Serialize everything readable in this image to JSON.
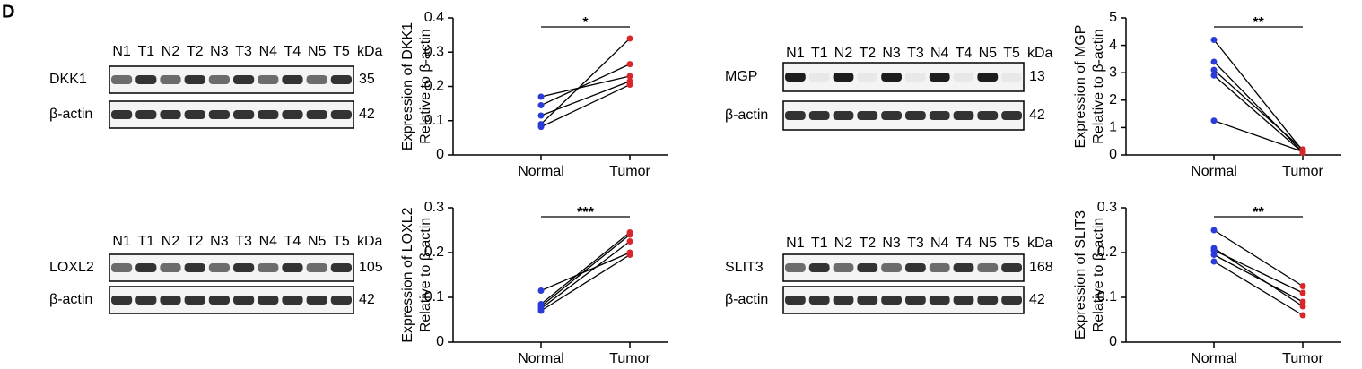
{
  "panel_label": "D",
  "blots": [
    {
      "lanes": [
        "N1",
        "T1",
        "N2",
        "T2",
        "N3",
        "T3",
        "N4",
        "T4",
        "N5",
        "T5"
      ],
      "unit": "kDa",
      "rows": [
        {
          "protein": "DKK1",
          "kda": 35
        },
        {
          "protein": "β-actin",
          "kda": 42
        }
      ]
    },
    {
      "lanes": [
        "N1",
        "T1",
        "N2",
        "T2",
        "N3",
        "T3",
        "N4",
        "T4",
        "N5",
        "T5"
      ],
      "unit": "kDa",
      "rows": [
        {
          "protein": "MGP",
          "kda": 13
        },
        {
          "protein": "β-actin",
          "kda": 42
        }
      ]
    },
    {
      "lanes": [
        "N1",
        "T1",
        "N2",
        "T2",
        "N3",
        "T3",
        "N4",
        "T4",
        "N5",
        "T5"
      ],
      "unit": "kDa",
      "rows": [
        {
          "protein": "LOXL2",
          "kda": 105
        },
        {
          "protein": "β-actin",
          "kda": 42
        }
      ]
    },
    {
      "lanes": [
        "N1",
        "T1",
        "N2",
        "T2",
        "N3",
        "T3",
        "N4",
        "T4",
        "N5",
        "T5"
      ],
      "unit": "kDa",
      "rows": [
        {
          "protein": "SLIT3",
          "kda": 168
        },
        {
          "protein": "β-actin",
          "kda": 42
        }
      ]
    }
  ],
  "chart_data": [
    {
      "type": "paired",
      "categories": [
        "Normal",
        "Tumor"
      ],
      "ylabel": [
        "Expression of DKK1",
        "Relative to β-actin"
      ],
      "annotation": "*",
      "ylim": [
        0,
        0.4
      ],
      "yticks": [
        0,
        0.1,
        0.2,
        0.3,
        0.4
      ],
      "colors": [
        "#2a3bd8",
        "#d8262b"
      ],
      "line_color": "#000000",
      "series": [
        {
          "values": [
            0.17,
            0.23
          ]
        },
        {
          "values": [
            0.145,
            0.265
          ]
        },
        {
          "values": [
            0.115,
            0.215
          ]
        },
        {
          "values": [
            0.09,
            0.34
          ]
        },
        {
          "values": [
            0.082,
            0.205
          ]
        }
      ]
    },
    {
      "type": "paired",
      "categories": [
        "Normal",
        "Tumor"
      ],
      "ylabel": [
        "Expression of MGP",
        "Relative to β-actin"
      ],
      "annotation": "**",
      "ylim": [
        0,
        5
      ],
      "yticks": [
        0,
        1,
        2,
        3,
        4,
        5
      ],
      "colors": [
        "#2a3bd8",
        "#d8262b"
      ],
      "line_color": "#000000",
      "series": [
        {
          "values": [
            4.2,
            0.15
          ]
        },
        {
          "values": [
            3.4,
            0.1
          ]
        },
        {
          "values": [
            3.1,
            0.2
          ]
        },
        {
          "values": [
            2.9,
            0.08
          ]
        },
        {
          "values": [
            1.25,
            0.12
          ]
        }
      ]
    },
    {
      "type": "paired",
      "categories": [
        "Normal",
        "Tumor"
      ],
      "ylabel": [
        "Expression of LOXL2",
        "Relative to β-actin"
      ],
      "annotation": "***",
      "ylim": [
        0,
        0.3
      ],
      "yticks": [
        0,
        0.1,
        0.2,
        0.3
      ],
      "colors": [
        "#2a3bd8",
        "#d8262b"
      ],
      "line_color": "#000000",
      "series": [
        {
          "values": [
            0.115,
            0.2
          ]
        },
        {
          "values": [
            0.085,
            0.245
          ]
        },
        {
          "values": [
            0.08,
            0.24
          ]
        },
        {
          "values": [
            0.075,
            0.225
          ]
        },
        {
          "values": [
            0.07,
            0.195
          ]
        }
      ]
    },
    {
      "type": "paired",
      "categories": [
        "Normal",
        "Tumor"
      ],
      "ylabel": [
        "Expression of SLIT3",
        "Relative to β-actin"
      ],
      "annotation": "**",
      "ylim": [
        0,
        0.3
      ],
      "yticks": [
        0,
        0.1,
        0.2,
        0.3
      ],
      "colors": [
        "#2a3bd8",
        "#d8262b"
      ],
      "line_color": "#000000",
      "series": [
        {
          "values": [
            0.25,
            0.125
          ]
        },
        {
          "values": [
            0.21,
            0.08
          ]
        },
        {
          "values": [
            0.205,
            0.11
          ]
        },
        {
          "values": [
            0.195,
            0.09
          ]
        },
        {
          "values": [
            0.18,
            0.06
          ]
        }
      ]
    }
  ]
}
